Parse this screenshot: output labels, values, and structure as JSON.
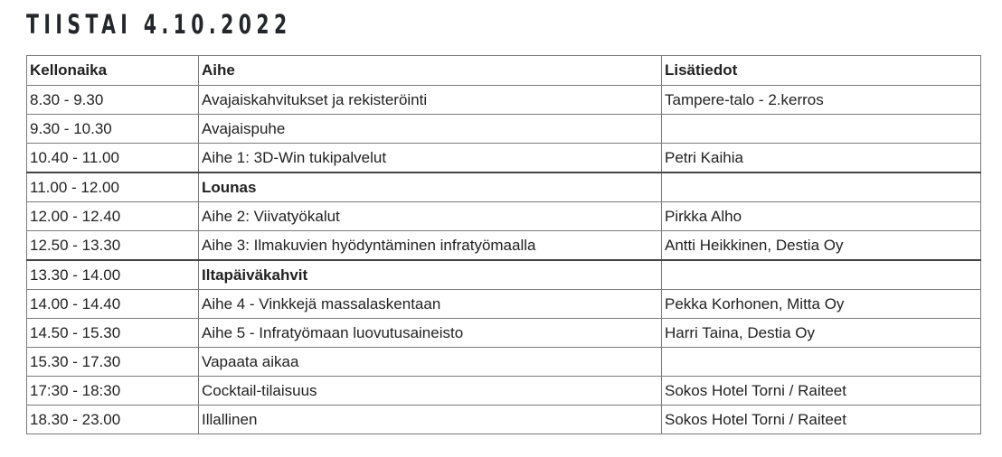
{
  "title": "TIISTAI 4.10.2022",
  "columns": [
    "Kellonaika",
    "Aihe",
    "Lisätiedot"
  ],
  "rows": [
    {
      "time": "8.30 - 9.30",
      "topic": "Avajaiskahvitukset ja rekisteröinti",
      "info": "Tampere-talo - 2.kerros"
    },
    {
      "time": "9.30 - 10.30",
      "topic": "Avajaispuhe",
      "info": ""
    },
    {
      "time": "10.40 - 11.00",
      "topic": "Aihe 1: 3D-Win tukipalvelut",
      "info": "Petri Kaihia"
    },
    {
      "time": "11.00 - 12.00",
      "topic": "Lounas",
      "info": "",
      "bold": true
    },
    {
      "time": "12.00 - 12.40",
      "topic": "Aihe 2: Viivatyökalut",
      "info": "Pirkka Alho"
    },
    {
      "time": "12.50 - 13.30",
      "topic": "Aihe 3: Ilmakuvien hyödyntäminen infratyömaalla",
      "info": "Antti Heikkinen, Destia Oy"
    },
    {
      "time": "13.30 - 14.00",
      "topic": "Iltapäiväkahvit",
      "info": "",
      "bold": true
    },
    {
      "time": "14.00 - 14.40",
      "topic": "Aihe 4 - Vinkkejä massalaskentaan",
      "info": "Pekka Korhonen, Mitta Oy"
    },
    {
      "time": "14.50 - 15.30",
      "topic": "Aihe 5 - Infratyömaan luovutusaineisto",
      "info": "Harri Taina, Destia Oy"
    },
    {
      "time": "15.30 - 17.30",
      "topic": "Vapaata aikaa",
      "info": ""
    },
    {
      "time": "17:30 - 18:30",
      "topic": "Cocktail-tilaisuus",
      "info": "Sokos Hotel Torni / Raiteet"
    },
    {
      "time": "18.30 - 23.00",
      "topic": "Illallinen",
      "info": "Sokos Hotel Torni / Raiteet"
    }
  ]
}
